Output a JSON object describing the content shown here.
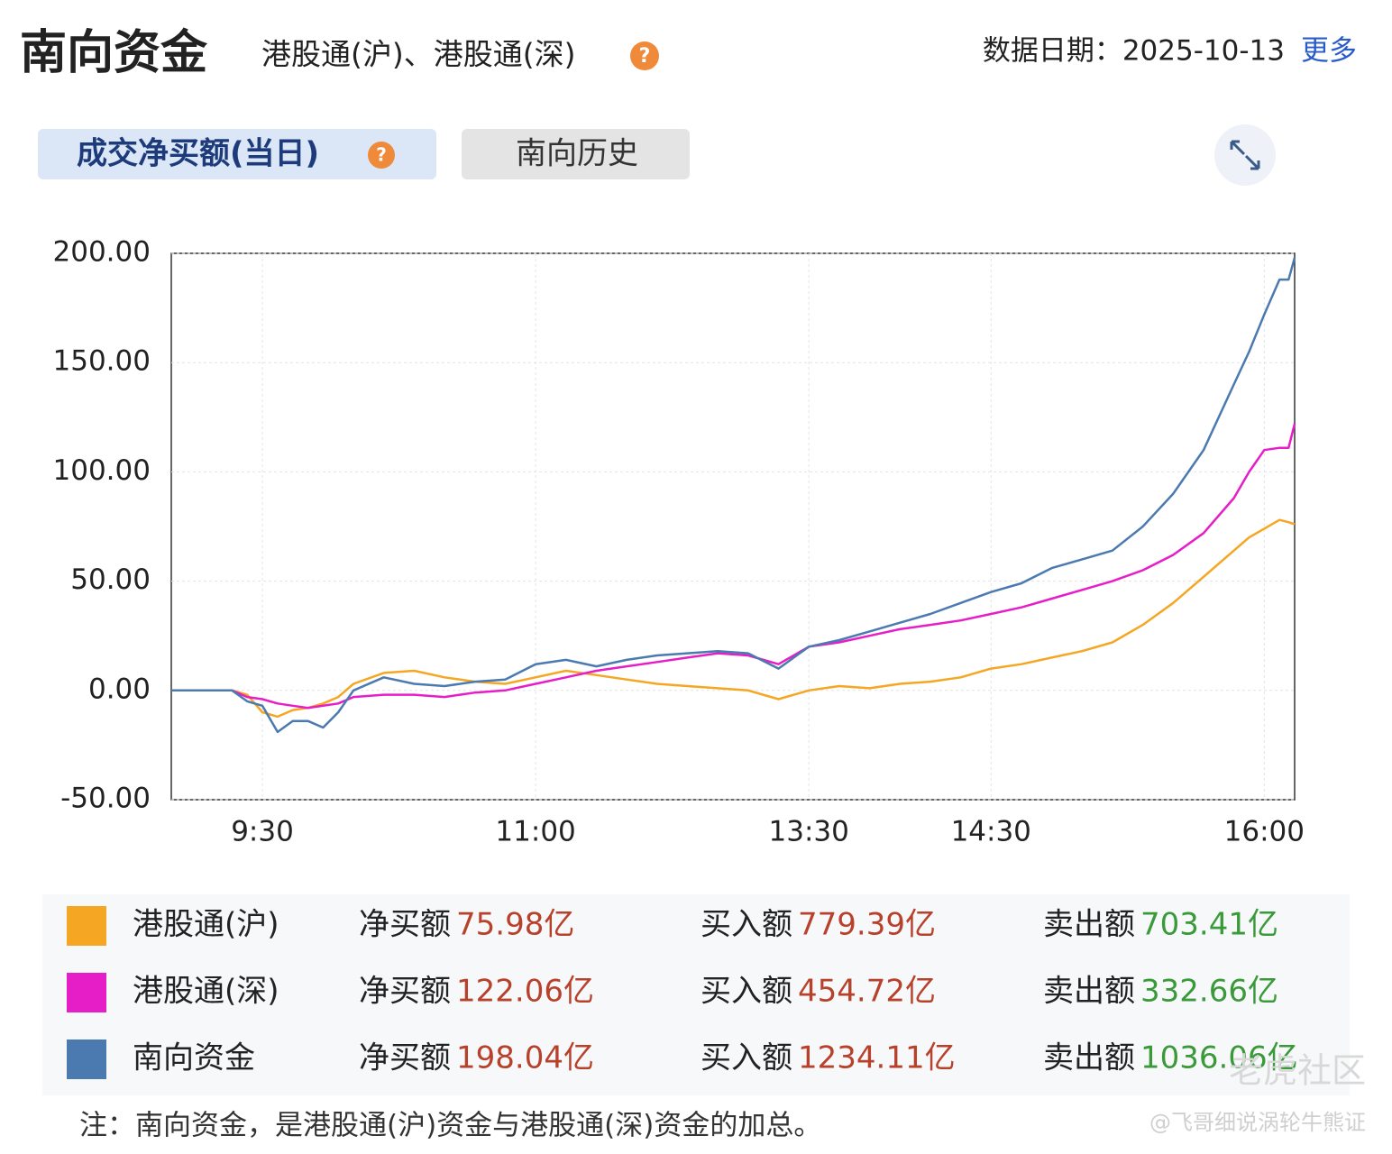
{
  "header": {
    "title": "南向资金",
    "subtitle": "港股通(沪)、港股通(深)",
    "help_icon": "?",
    "date_label": "数据日期：2025-10-13",
    "more_link": "更多"
  },
  "tabs": [
    "成交净买额(当日)",
    "南向历史"
  ],
  "chart_data": {
    "type": "line",
    "x": [
      0,
      10,
      15,
      20,
      25,
      30,
      35,
      40,
      45,
      50,
      55,
      60,
      70,
      80,
      90,
      100,
      110,
      120,
      130,
      140,
      150,
      160,
      170,
      180,
      190,
      200,
      210,
      220,
      230,
      240,
      250,
      260,
      270,
      280,
      290,
      300,
      310,
      320,
      330,
      340,
      350,
      355,
      360,
      365,
      368,
      370
    ],
    "xlim": [
      0,
      370
    ],
    "xticks": [
      {
        "value": 30,
        "label": "9:30"
      },
      {
        "value": 120,
        "label": "11:00"
      },
      {
        "value": 210,
        "label": "13:30"
      },
      {
        "value": 270,
        "label": "14:30"
      },
      {
        "value": 360,
        "label": "16:00"
      }
    ],
    "ylim": [
      -50,
      200
    ],
    "yticks": [
      {
        "value": -50,
        "label": "-50.00"
      },
      {
        "value": 0,
        "label": "0.00"
      },
      {
        "value": 50,
        "label": "50.00"
      },
      {
        "value": 100,
        "label": "100.00"
      },
      {
        "value": 150,
        "label": "150.00"
      },
      {
        "value": 200,
        "label": "200.00"
      }
    ],
    "grid": true,
    "series": [
      {
        "name": "港股通(沪)",
        "color": "#f5a623",
        "values": [
          0,
          0,
          0,
          0,
          -2,
          -10,
          -12,
          -9,
          -8,
          -6,
          -3,
          3,
          8,
          9,
          6,
          4,
          3,
          6,
          9,
          7,
          5,
          3,
          2,
          1,
          0,
          -4,
          0,
          2,
          1,
          3,
          4,
          6,
          10,
          12,
          15,
          18,
          22,
          30,
          40,
          52,
          64,
          70,
          74,
          78,
          77,
          76
        ]
      },
      {
        "name": "港股通(深)",
        "color": "#e61ec8",
        "values": [
          0,
          0,
          0,
          0,
          -3,
          -4,
          -6,
          -7,
          -8,
          -7,
          -6,
          -3,
          -2,
          -2,
          -3,
          -1,
          0,
          3,
          6,
          9,
          11,
          13,
          15,
          17,
          16,
          12,
          20,
          22,
          25,
          28,
          30,
          32,
          35,
          38,
          42,
          46,
          50,
          55,
          62,
          72,
          88,
          100,
          110,
          111,
          111,
          122
        ]
      },
      {
        "name": "南向资金",
        "color": "#4a7ab0",
        "values": [
          0,
          0,
          0,
          0,
          -5,
          -7,
          -19,
          -14,
          -14,
          -17,
          -10,
          0,
          6,
          3,
          2,
          4,
          5,
          12,
          14,
          11,
          14,
          16,
          17,
          18,
          17,
          10,
          20,
          23,
          27,
          31,
          35,
          40,
          45,
          49,
          56,
          60,
          64,
          75,
          90,
          110,
          140,
          155,
          172,
          188,
          188,
          198
        ]
      }
    ]
  },
  "summary": {
    "rows": [
      {
        "net_label": "净买额",
        "net": "75.98亿",
        "buy_label": "买入额",
        "buy": "779.39亿",
        "sell_label": "卖出额",
        "sell": "703.41亿"
      },
      {
        "net_label": "净买额",
        "net": "122.06亿",
        "buy_label": "买入额",
        "buy": "454.72亿",
        "sell_label": "卖出额",
        "sell": "332.66亿"
      },
      {
        "net_label": "净买额",
        "net": "198.04亿",
        "buy_label": "买入额",
        "buy": "1234.11亿",
        "sell_label": "卖出额",
        "sell": "1036.06亿"
      }
    ]
  },
  "note": "注：南向资金，是港股通(沪)资金与港股通(深)资金的加总。",
  "watermark": {
    "brand": "老虎社区",
    "author": "@飞哥细说涡轮牛熊证"
  }
}
